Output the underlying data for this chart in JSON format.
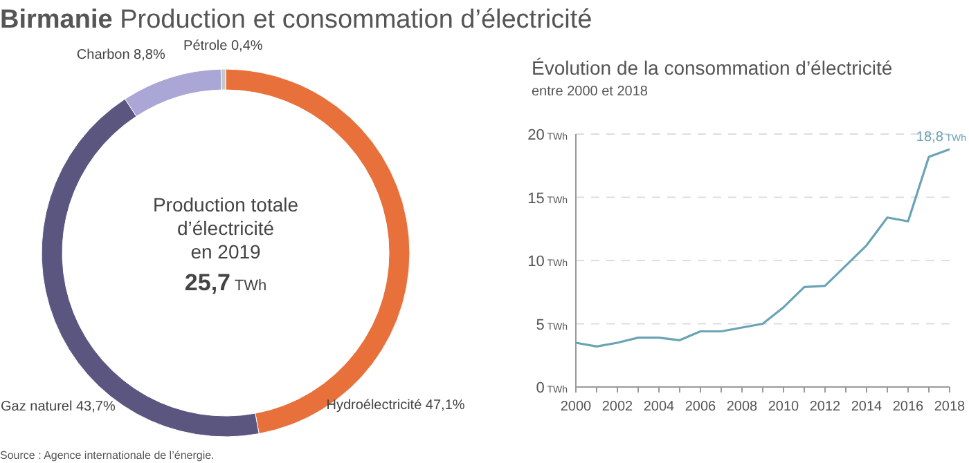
{
  "chart_data": [
    {
      "type": "donut",
      "title": "Birmanie",
      "subtitle": "Production et consommation d’électricité",
      "categories": [
        "Hydroélectricité",
        "Gaz naturel",
        "Charbon",
        "Pétrole"
      ],
      "values": [
        47.1,
        43.7,
        8.8,
        0.4
      ],
      "value_labels": [
        "47,1%",
        "43,7%",
        "8,8%",
        "0,4%"
      ],
      "colors": [
        "#e8703a",
        "#5a5680",
        "#aaa6d6",
        "#c8c8c8"
      ],
      "annotations": [
        "Production totale",
        "d’électricité",
        "en 2019",
        "25,7 TWh",
        "Source : Agence internationale de l’énergie."
      ]
    },
    {
      "type": "line",
      "title": "Évolution de la consommation d’électricité",
      "subtitle": "entre 2000 et 2018",
      "x": [
        2000,
        2001,
        2002,
        2003,
        2004,
        2005,
        2006,
        2007,
        2008,
        2009,
        2010,
        2011,
        2012,
        2013,
        2014,
        2015,
        2016,
        2017,
        2018
      ],
      "series": [
        {
          "color": "#6aa3b4",
          "values": [
            3.5,
            3.2,
            3.5,
            3.9,
            3.9,
            3.7,
            4.4,
            4.4,
            4.7,
            5.0,
            6.3,
            7.9,
            8.0,
            9.6,
            11.2,
            13.4,
            13.1,
            18.2,
            18.8
          ],
          "value_labels": [
            null,
            null,
            null,
            null,
            null,
            null,
            null,
            null,
            null,
            null,
            null,
            null,
            null,
            null,
            null,
            null,
            null,
            null,
            "18,8 TWh"
          ]
        }
      ],
      "xlim": [
        2000,
        2018
      ],
      "xticks": [
        2000,
        2002,
        2004,
        2006,
        2008,
        2010,
        2012,
        2014,
        2016,
        2018
      ],
      "ylim": [
        0,
        20
      ],
      "yticks": [
        {
          "value": 0,
          "label": "0 TWh"
        },
        {
          "value": 5,
          "label": "5 TWh"
        },
        {
          "value": 10,
          "label": "10 TWh"
        },
        {
          "value": 15,
          "label": "15 TWh"
        },
        {
          "value": 20,
          "label": "20 TWh"
        }
      ],
      "grid": "y",
      "marker": "none",
      "line_style": "solid"
    }
  ]
}
